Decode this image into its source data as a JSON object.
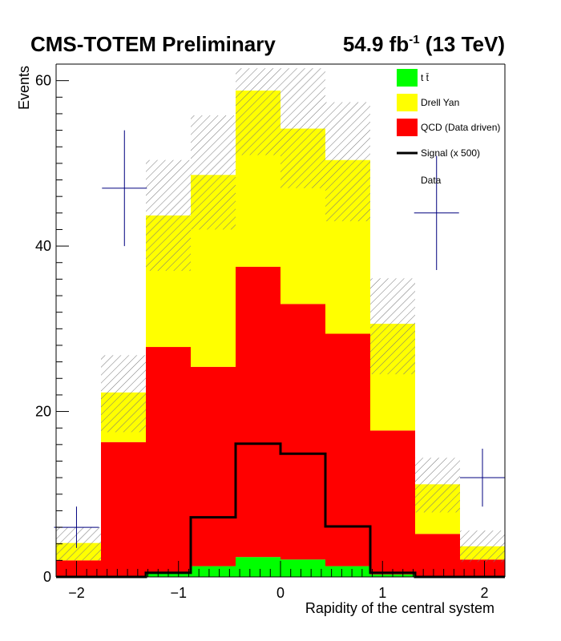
{
  "header": {
    "experiment": "CMS-TOTEM Preliminary",
    "lumi_value": "54.9 fb",
    "lumi_exp": "-1",
    "energy": "(13 TeV)"
  },
  "chart_data": {
    "type": "bar",
    "stacked": true,
    "xlabel": "Rapidity of the central system",
    "ylabel": "Events",
    "xlim": [
      -2.2,
      2.2
    ],
    "ylim": [
      0,
      62
    ],
    "x_ticks": [
      -2,
      -1,
      0,
      1,
      2
    ],
    "x_tick_labels": [
      "−2",
      "−1",
      "0",
      "1",
      "2"
    ],
    "y_ticks": [
      0,
      20,
      40,
      60
    ],
    "y_tick_labels": [
      "0",
      "20",
      "40",
      "60"
    ],
    "bin_edges": [
      -2.2,
      -1.76,
      -1.32,
      -0.88,
      -0.44,
      0.0,
      0.44,
      0.88,
      1.32,
      1.76,
      2.2
    ],
    "series": [
      {
        "name": "tt̄",
        "display_label": "t t̄",
        "color": "#00ff00",
        "values": [
          0.0,
          0.1,
          0.6,
          1.3,
          2.4,
          2.1,
          1.3,
          0.3,
          0.0,
          0.0
        ]
      },
      {
        "name": "QCD (Data driven)",
        "color": "#ff0000",
        "values": [
          2.0,
          16.2,
          27.2,
          24.1,
          35.1,
          30.9,
          28.1,
          17.4,
          5.2,
          2.1
        ]
      },
      {
        "name": "Drell Yan",
        "color": "#ffff00",
        "values": [
          2.1,
          6.0,
          15.9,
          23.2,
          21.3,
          21.2,
          21.0,
          12.9,
          6.0,
          1.6
        ]
      }
    ],
    "stat_uncertainty_band": {
      "style": "hatched",
      "up": [
        6.0,
        26.8,
        50.4,
        55.8,
        61.5,
        61.5,
        57.4,
        36.1,
        14.4,
        5.6
      ],
      "down": [
        2.0,
        17.5,
        37.0,
        42.0,
        51.0,
        47.0,
        43.0,
        24.5,
        7.8,
        1.8
      ]
    },
    "signal": {
      "name": "Signal (x 500)",
      "color": "#000000",
      "values": [
        0.0,
        0.0,
        0.5,
        7.2,
        16.1,
        14.9,
        6.1,
        0.5,
        0.0,
        0.0
      ]
    },
    "data": {
      "name": "Data",
      "color": "#00007f",
      "points": [
        {
          "x": -2.0,
          "y": 6.0,
          "y_err": 2.5
        },
        {
          "x": -1.53,
          "y": 47.0,
          "y_err": 7.0
        },
        {
          "x": 1.53,
          "y": 44.0,
          "y_err": 6.9
        },
        {
          "x": 1.98,
          "y": 12.0,
          "y_err": 3.5
        }
      ]
    },
    "legend": {
      "position": "top-right",
      "entries": [
        "tt̄",
        "Drell Yan",
        "QCD (Data driven)",
        "Signal (x 500)",
        "Data"
      ]
    },
    "grid": false
  }
}
